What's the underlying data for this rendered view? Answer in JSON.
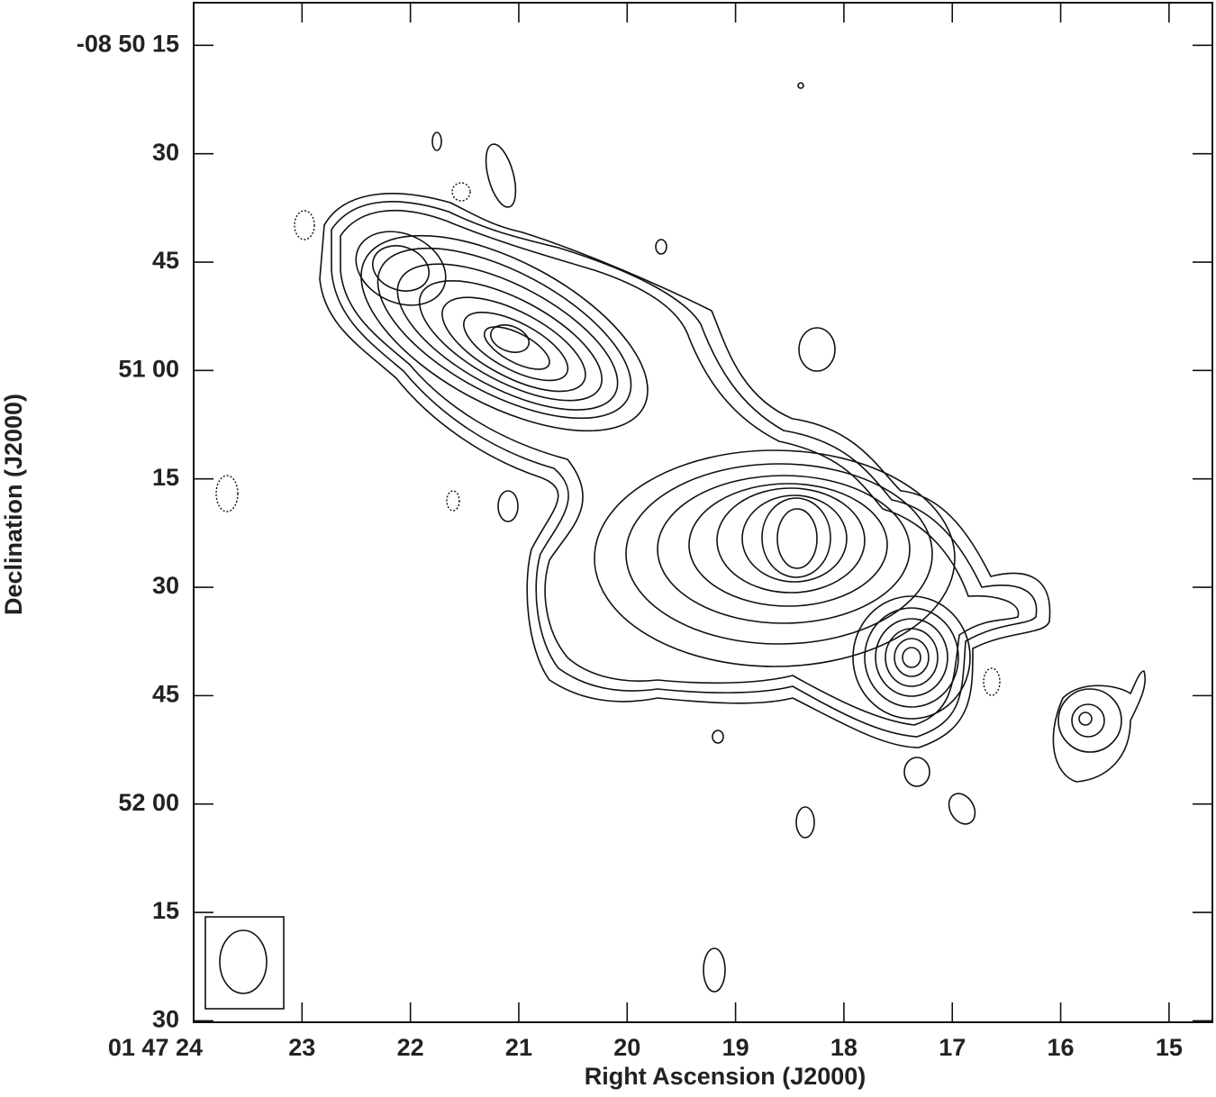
{
  "chart_data": {
    "type": "contour",
    "x_label": "Right Ascension (J2000)",
    "y_label": "Declination (J2000)",
    "xlim": [
      24,
      14.6
    ],
    "xticks": [
      {
        "value": 24,
        "label": "01 47 24"
      },
      23,
      22,
      21,
      20,
      19,
      18,
      17,
      16,
      15
    ],
    "ylim": [
      150.2,
      9.1
    ],
    "yticks": [
      {
        "value": 15,
        "label": "-08 50 15"
      },
      30,
      45,
      {
        "value": 60,
        "label": "51 00"
      },
      {
        "value": 75,
        "label": "15"
      },
      {
        "value": 90,
        "label": "30"
      },
      {
        "value": 105,
        "label": "45"
      },
      {
        "value": 120,
        "label": "52 00"
      },
      {
        "value": 135,
        "label": "15"
      },
      {
        "value": 150,
        "label": "30"
      }
    ]
  }
}
